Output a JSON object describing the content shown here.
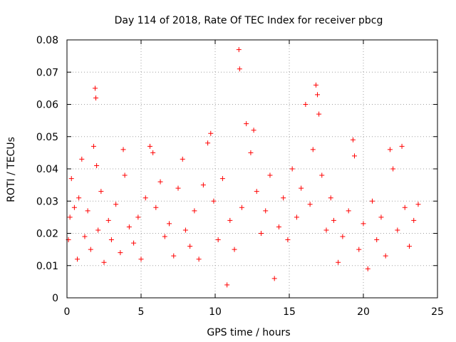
{
  "chart_data": {
    "type": "scatter",
    "title": "Day 114 of 2018, Rate Of TEC Index for receiver pbcg",
    "xlabel": "GPS time / hours",
    "ylabel": "ROTI / TECUs",
    "xlim": [
      0,
      25
    ],
    "ylim": [
      0,
      0.08
    ],
    "xticks": [
      "0",
      "5",
      "10",
      "15",
      "20",
      "25"
    ],
    "yticks": [
      "0",
      "0.01",
      "0.02",
      "0.03",
      "0.04",
      "0.05",
      "0.06",
      "0.07",
      "0.08"
    ],
    "grid": true,
    "marker": "+",
    "series_color": "#ff0000",
    "series": [
      {
        "name": "ROTI",
        "points": [
          [
            0.1,
            0.018
          ],
          [
            0.2,
            0.025
          ],
          [
            0.3,
            0.037
          ],
          [
            0.5,
            0.028
          ],
          [
            0.7,
            0.012
          ],
          [
            0.8,
            0.031
          ],
          [
            1.0,
            0.043
          ],
          [
            1.2,
            0.019
          ],
          [
            1.4,
            0.027
          ],
          [
            1.6,
            0.015
          ],
          [
            1.8,
            0.047
          ],
          [
            1.9,
            0.065
          ],
          [
            1.95,
            0.062
          ],
          [
            2.0,
            0.041
          ],
          [
            2.1,
            0.021
          ],
          [
            2.3,
            0.033
          ],
          [
            2.5,
            0.011
          ],
          [
            2.8,
            0.024
          ],
          [
            3.0,
            0.018
          ],
          [
            3.3,
            0.029
          ],
          [
            3.6,
            0.014
          ],
          [
            3.8,
            0.046
          ],
          [
            3.9,
            0.038
          ],
          [
            4.2,
            0.022
          ],
          [
            4.5,
            0.017
          ],
          [
            4.8,
            0.025
          ],
          [
            5.0,
            0.012
          ],
          [
            5.3,
            0.031
          ],
          [
            5.6,
            0.047
          ],
          [
            5.8,
            0.045
          ],
          [
            6.0,
            0.028
          ],
          [
            6.3,
            0.036
          ],
          [
            6.6,
            0.019
          ],
          [
            6.9,
            0.023
          ],
          [
            7.2,
            0.013
          ],
          [
            7.5,
            0.034
          ],
          [
            7.8,
            0.043
          ],
          [
            8.0,
            0.021
          ],
          [
            8.3,
            0.016
          ],
          [
            8.6,
            0.027
          ],
          [
            8.9,
            0.012
          ],
          [
            9.2,
            0.035
          ],
          [
            9.5,
            0.048
          ],
          [
            9.7,
            0.051
          ],
          [
            9.9,
            0.03
          ],
          [
            10.2,
            0.018
          ],
          [
            10.5,
            0.037
          ],
          [
            10.8,
            0.004
          ],
          [
            11.0,
            0.024
          ],
          [
            11.3,
            0.015
          ],
          [
            11.6,
            0.077
          ],
          [
            11.65,
            0.071
          ],
          [
            11.8,
            0.028
          ],
          [
            12.1,
            0.054
          ],
          [
            12.4,
            0.045
          ],
          [
            12.6,
            0.052
          ],
          [
            12.8,
            0.033
          ],
          [
            13.1,
            0.02
          ],
          [
            13.4,
            0.027
          ],
          [
            13.7,
            0.038
          ],
          [
            14.0,
            0.006
          ],
          [
            14.3,
            0.022
          ],
          [
            14.6,
            0.031
          ],
          [
            14.9,
            0.018
          ],
          [
            15.2,
            0.04
          ],
          [
            15.5,
            0.025
          ],
          [
            15.8,
            0.034
          ],
          [
            16.1,
            0.06
          ],
          [
            16.4,
            0.029
          ],
          [
            16.6,
            0.046
          ],
          [
            16.8,
            0.066
          ],
          [
            16.9,
            0.063
          ],
          [
            17.0,
            0.057
          ],
          [
            17.2,
            0.038
          ],
          [
            17.5,
            0.021
          ],
          [
            17.8,
            0.031
          ],
          [
            18.0,
            0.024
          ],
          [
            18.3,
            0.011
          ],
          [
            18.6,
            0.019
          ],
          [
            19.0,
            0.027
          ],
          [
            19.3,
            0.049
          ],
          [
            19.4,
            0.044
          ],
          [
            19.7,
            0.015
          ],
          [
            20.0,
            0.023
          ],
          [
            20.3,
            0.009
          ],
          [
            20.6,
            0.03
          ],
          [
            20.9,
            0.018
          ],
          [
            21.2,
            0.025
          ],
          [
            21.5,
            0.013
          ],
          [
            21.8,
            0.046
          ],
          [
            22.0,
            0.04
          ],
          [
            22.3,
            0.021
          ],
          [
            22.6,
            0.047
          ],
          [
            22.8,
            0.028
          ],
          [
            23.1,
            0.016
          ],
          [
            23.4,
            0.024
          ],
          [
            23.7,
            0.029
          ]
        ]
      }
    ]
  }
}
